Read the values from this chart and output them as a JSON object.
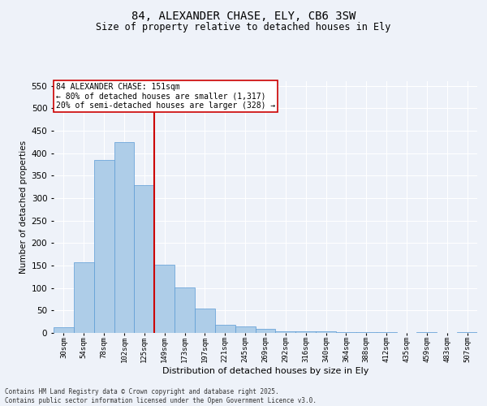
{
  "title_line1": "84, ALEXANDER CHASE, ELY, CB6 3SW",
  "title_line2": "Size of property relative to detached houses in Ely",
  "xlabel": "Distribution of detached houses by size in Ely",
  "ylabel": "Number of detached properties",
  "bin_labels": [
    "30sqm",
    "54sqm",
    "78sqm",
    "102sqm",
    "125sqm",
    "149sqm",
    "173sqm",
    "197sqm",
    "221sqm",
    "245sqm",
    "269sqm",
    "292sqm",
    "316sqm",
    "340sqm",
    "364sqm",
    "388sqm",
    "412sqm",
    "435sqm",
    "459sqm",
    "483sqm",
    "507sqm"
  ],
  "bar_heights": [
    12,
    158,
    385,
    425,
    328,
    152,
    102,
    55,
    18,
    15,
    9,
    4,
    4,
    4,
    2,
    1,
    2,
    0,
    1,
    0,
    2
  ],
  "bar_color": "#aecde8",
  "bar_edgecolor": "#5b9bd5",
  "vline_bin_index": 5,
  "annotation_title": "84 ALEXANDER CHASE: 151sqm",
  "annotation_line1": "← 80% of detached houses are smaller (1,317)",
  "annotation_line2": "20% of semi-detached houses are larger (328) →",
  "annotation_box_facecolor": "#ffffff",
  "annotation_box_edgecolor": "#cc0000",
  "vline_color": "#cc0000",
  "ylim": [
    0,
    560
  ],
  "yticks": [
    0,
    50,
    100,
    150,
    200,
    250,
    300,
    350,
    400,
    450,
    500,
    550
  ],
  "footer_line1": "Contains HM Land Registry data © Crown copyright and database right 2025.",
  "footer_line2": "Contains public sector information licensed under the Open Government Licence v3.0.",
  "background_color": "#eef2f9",
  "grid_color": "#ffffff"
}
